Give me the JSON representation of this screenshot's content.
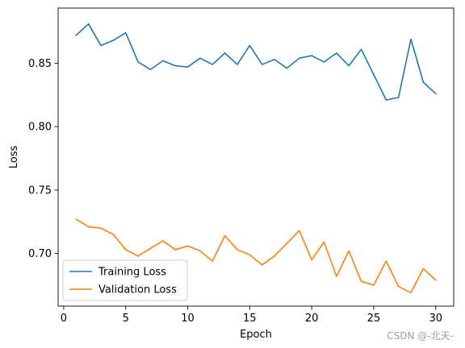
{
  "chart_data": {
    "type": "line",
    "xlabel": "Epoch",
    "ylabel": "Loss",
    "xlim": [
      -0.45,
      31.45
    ],
    "ylim": [
      0.6585,
      0.8935
    ],
    "xticks": [
      0,
      5,
      10,
      15,
      20,
      25,
      30
    ],
    "yticks": [
      0.7,
      0.75,
      0.8,
      0.85
    ],
    "ytick_labels": [
      "0.70",
      "0.75",
      "0.80",
      "0.85"
    ],
    "grid": false,
    "legend_position": "lower-left",
    "x": [
      1,
      2,
      3,
      4,
      5,
      6,
      7,
      8,
      9,
      10,
      11,
      12,
      13,
      14,
      15,
      16,
      17,
      18,
      19,
      20,
      21,
      22,
      23,
      24,
      25,
      26,
      27,
      28,
      29,
      30
    ],
    "series": [
      {
        "name": "Training Loss",
        "color": "#1f77b4",
        "values": [
          0.872,
          0.881,
          0.864,
          0.868,
          0.874,
          0.851,
          0.845,
          0.852,
          0.848,
          0.847,
          0.854,
          0.849,
          0.858,
          0.849,
          0.864,
          0.849,
          0.853,
          0.846,
          0.854,
          0.856,
          0.851,
          0.858,
          0.848,
          0.861,
          0.841,
          0.821,
          0.823,
          0.869,
          0.835,
          0.826
        ]
      },
      {
        "name": "Validation Loss",
        "color": "#ff7f0e",
        "values": [
          0.727,
          0.721,
          0.72,
          0.715,
          0.703,
          0.698,
          0.704,
          0.71,
          0.703,
          0.706,
          0.702,
          0.694,
          0.714,
          0.703,
          0.699,
          0.691,
          0.698,
          0.708,
          0.718,
          0.695,
          0.709,
          0.682,
          0.702,
          0.678,
          0.675,
          0.694,
          0.674,
          0.669,
          0.688,
          0.679
        ]
      }
    ]
  },
  "watermark": "CSDN @-北天-"
}
